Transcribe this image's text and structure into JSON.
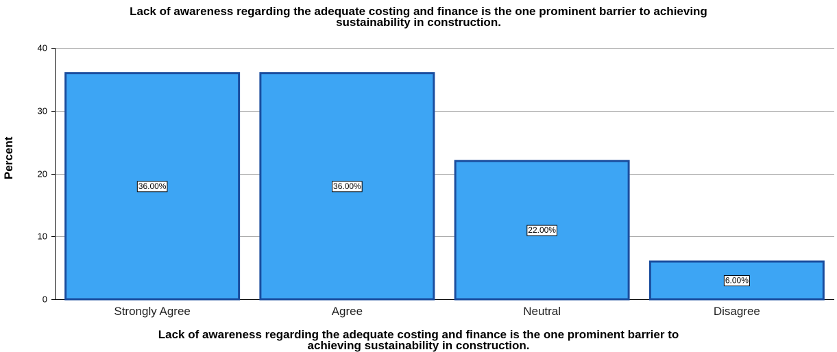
{
  "chart_data": {
    "type": "bar",
    "title_lines": [
      "Lack of awareness regarding the adequate costing and finance is the one prominent barrier to achieving",
      "sustainability in construction."
    ],
    "xlabel_lines": [
      "Lack of awareness regarding the adequate costing and finance is the one prominent barrier to",
      "achieving sustainability in construction."
    ],
    "ylabel": "Percent",
    "categories": [
      "Strongly Agree",
      "Agree",
      "Neutral",
      "Disagree"
    ],
    "values": [
      36,
      36,
      22,
      6
    ],
    "data_labels": [
      "36.00%",
      "36.00%",
      "22.00%",
      "6.00%"
    ],
    "yticks": [
      0,
      10,
      20,
      30,
      40
    ],
    "ylim": [
      0,
      40
    ],
    "grid": true,
    "bar_color": "#3da5f4",
    "bar_edge_color": "#1a4d9e"
  }
}
